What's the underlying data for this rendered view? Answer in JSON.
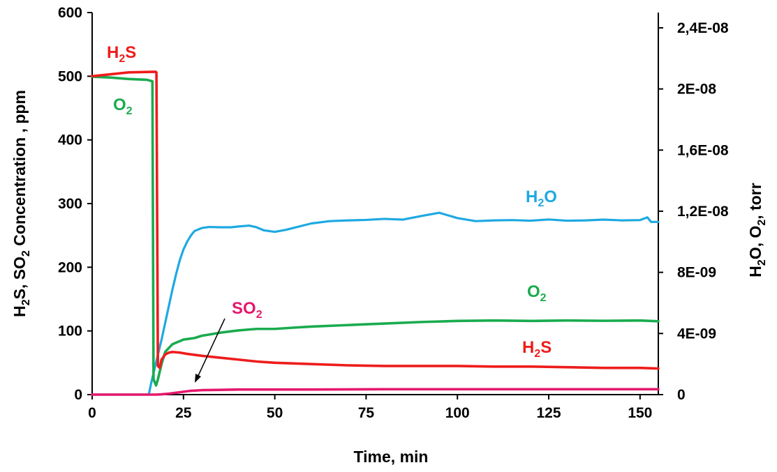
{
  "chart_data": {
    "type": "line",
    "title": "",
    "xlabel": "Time, min",
    "ylabel_left": {
      "prefix": "H",
      "sub1": "2",
      "mid": "S, SO",
      "sub2": "2",
      "suffix": " Concentration , ppm"
    },
    "ylabel_right": {
      "p1": "H",
      "s1": "2",
      "p2": "O, O",
      "s2": "2",
      "p3": ", torr"
    },
    "xlim": [
      0,
      155
    ],
    "ylim_left": [
      0,
      600
    ],
    "ylim_right": [
      0,
      2.5e-08
    ],
    "x_ticks": [
      "0",
      "25",
      "50",
      "75",
      "100",
      "125",
      "150"
    ],
    "x_tick_values": [
      0,
      25,
      50,
      75,
      100,
      125,
      150
    ],
    "y_left_ticks": [
      "0",
      "100",
      "200",
      "300",
      "400",
      "500",
      "600"
    ],
    "y_left_tick_values": [
      0,
      100,
      200,
      300,
      400,
      500,
      600
    ],
    "y_right_ticks": [
      "0",
      "4E-09",
      "8E-09",
      "1,2E-08",
      "1,6E-08",
      "2E-08",
      "2,4E-08"
    ],
    "y_right_tick_values": [
      0,
      4e-09,
      8e-09,
      1.2e-08,
      1.6e-08,
      2e-08,
      2.4e-08
    ],
    "grid": false,
    "legend": "none",
    "series": [
      {
        "id": "h2o",
        "axis": "right",
        "color": "#1EA9E1",
        "x": [
          0,
          15.5,
          16.2,
          17,
          18,
          19,
          20,
          21,
          22,
          23,
          24,
          25,
          26,
          27,
          28,
          30,
          32,
          35,
          38,
          40,
          43,
          45,
          47,
          50,
          53,
          55,
          60,
          65,
          70,
          75,
          80,
          85,
          90,
          95,
          100,
          105,
          110,
          115,
          120,
          125,
          130,
          135,
          140,
          145,
          150,
          152,
          153,
          155
        ],
        "y": [
          0,
          0,
          8e-10,
          1.6e-09,
          2.6e-09,
          3.6e-09,
          4.7e-09,
          5.8e-09,
          6.9e-09,
          7.9e-09,
          8.8e-09,
          9.5e-09,
          1e-08,
          1.04e-08,
          1.07e-08,
          1.09e-08,
          1.097e-08,
          1.095e-08,
          1.095e-08,
          1.1e-08,
          1.106e-08,
          1.095e-08,
          1.075e-08,
          1.065e-08,
          1.078e-08,
          1.09e-08,
          1.12e-08,
          1.135e-08,
          1.14e-08,
          1.143e-08,
          1.15e-08,
          1.145e-08,
          1.168e-08,
          1.19e-08,
          1.155e-08,
          1.135e-08,
          1.14e-08,
          1.142e-08,
          1.138e-08,
          1.146e-08,
          1.138e-08,
          1.14e-08,
          1.145e-08,
          1.14e-08,
          1.142e-08,
          1.16e-08,
          1.13e-08,
          1.13e-08
        ]
      },
      {
        "id": "o2",
        "axis": "right",
        "color": "#1AAB4F",
        "x": [
          0,
          5,
          10,
          15,
          16.5,
          16.8,
          17.5,
          18,
          19,
          20,
          22,
          25,
          28,
          30,
          35,
          40,
          45,
          50,
          55,
          60,
          70,
          80,
          90,
          100,
          110,
          120,
          130,
          140,
          150,
          155
        ],
        "y": [
          2.08e-08,
          2.075e-08,
          2.065e-08,
          2.06e-08,
          2.05e-08,
          1e-09,
          6e-10,
          1e-09,
          2e-09,
          2.8e-09,
          3.3e-09,
          3.6e-09,
          3.7e-09,
          3.85e-09,
          4.05e-09,
          4.2e-09,
          4.3e-09,
          4.3e-09,
          4.38e-09,
          4.45e-09,
          4.55e-09,
          4.65e-09,
          4.75e-09,
          4.82e-09,
          4.85e-09,
          4.82e-09,
          4.85e-09,
          4.83e-09,
          4.85e-09,
          4.8e-09
        ]
      },
      {
        "id": "h2s",
        "axis": "left",
        "color": "#EE1C1C",
        "x": [
          0,
          5,
          10,
          17.4,
          17.6,
          18,
          18.5,
          19,
          20,
          21,
          22,
          24,
          26,
          30,
          35,
          40,
          45,
          50,
          60,
          70,
          80,
          90,
          100,
          110,
          120,
          130,
          140,
          150,
          155
        ],
        "y": [
          500,
          503,
          506,
          507,
          506,
          45,
          42,
          55,
          63,
          66,
          67,
          66,
          64,
          61,
          58,
          55,
          52,
          50,
          48,
          46,
          45,
          45,
          45,
          44,
          44,
          43,
          42,
          42,
          41
        ]
      },
      {
        "id": "so2",
        "axis": "left",
        "color": "#E6186C",
        "x": [
          0,
          17.5,
          19,
          21,
          23,
          25,
          27,
          30,
          35,
          40,
          50,
          60,
          80,
          100,
          120,
          140,
          155
        ],
        "y": [
          0,
          0,
          0.5,
          1.5,
          3,
          4.5,
          6,
          7,
          7.5,
          8,
          8,
          8,
          8.5,
          8.5,
          8.5,
          8.5,
          8.5
        ]
      }
    ],
    "labels": [
      {
        "id": "h2s-top",
        "main": "H",
        "sub": "2",
        "rest": "S",
        "color": "#EE1C1C"
      },
      {
        "id": "o2-top",
        "main": "O",
        "sub": "2",
        "rest": "",
        "color": "#1AAB4F"
      },
      {
        "id": "h2o",
        "main": "H",
        "sub": "2",
        "rest": "O",
        "color": "#1EA9E1"
      },
      {
        "id": "o2-bottom",
        "main": "O",
        "sub": "2",
        "rest": "",
        "color": "#1AAB4F"
      },
      {
        "id": "so2",
        "main": "SO",
        "sub": "2",
        "rest": "",
        "color": "#E6186C"
      },
      {
        "id": "h2s-bottom",
        "main": "H",
        "sub": "2",
        "rest": "S",
        "color": "#EE1C1C"
      }
    ]
  }
}
